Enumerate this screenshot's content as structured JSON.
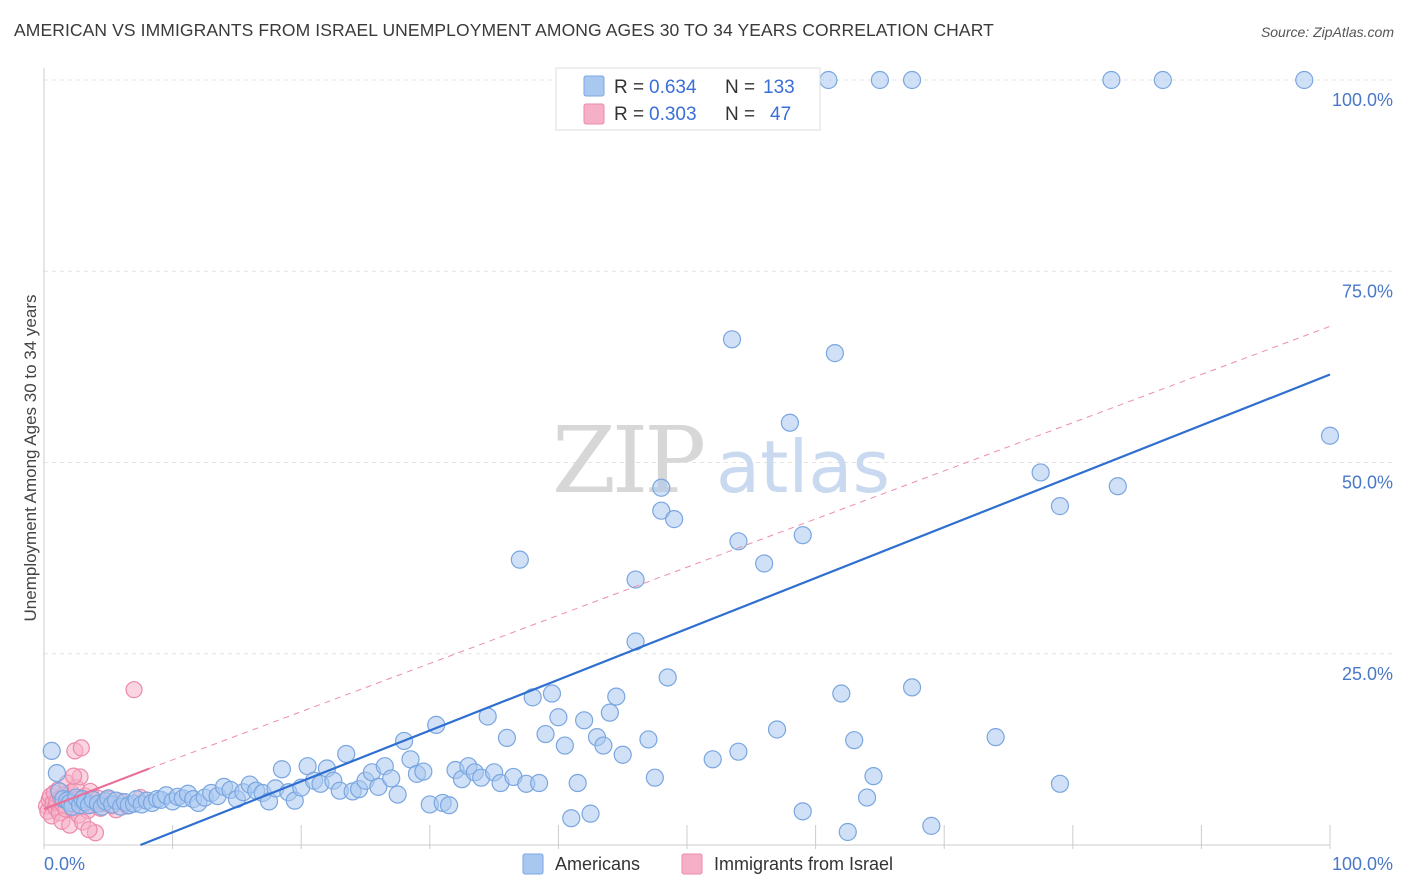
{
  "header": {
    "title": "AMERICAN VS IMMIGRANTS FROM ISRAEL UNEMPLOYMENT AMONG AGES 30 TO 34 YEARS CORRELATION CHART",
    "source": "Source: ZipAtlas.com"
  },
  "watermark": {
    "zip": "ZIP",
    "atlas": "atlas"
  },
  "legend": {
    "r_label": "R =",
    "n_label": "N =",
    "americans_r": "0.634",
    "americans_n": "133",
    "israel_r": "0.303",
    "israel_n": "47"
  },
  "colors": {
    "americans_fill": "#a9c8f0",
    "americans_stroke": "#7aa6e0",
    "americans_line": "#2f6fd0",
    "israel_fill": "#f5b0c8",
    "israel_stroke": "#ec8aaa",
    "israel_line": "#e8709a"
  },
  "chart_data": {
    "type": "scatter",
    "title": "AMERICAN VS IMMIGRANTS FROM ISRAEL UNEMPLOYMENT AMONG AGES 30 TO 34 YEARS CORRELATION CHART",
    "xlabel": "",
    "ylabel": "Unemployment Among Ages 30 to 34 years",
    "xlim": [
      0,
      100
    ],
    "ylim": [
      0,
      100
    ],
    "x_tick_labels": [
      "0.0%",
      "100.0%"
    ],
    "y_ticks": [
      {
        "value": 25,
        "label": "25.0%"
      },
      {
        "value": 50,
        "label": "50.0%"
      },
      {
        "value": 75,
        "label": "75.0%"
      },
      {
        "value": 100,
        "label": "100.0%"
      }
    ],
    "series": [
      {
        "name": "Americans",
        "r": 0.634,
        "n": 133,
        "trend": {
          "x0": 7.5,
          "y0": 0,
          "x1": 100,
          "y1": 61.5,
          "style": "solid"
        },
        "points": [
          [
            0.6,
            12.3
          ],
          [
            1.0,
            9.4
          ],
          [
            1.2,
            7.0
          ],
          [
            1.5,
            6.0
          ],
          [
            1.8,
            5.8
          ],
          [
            2.0,
            5.5
          ],
          [
            2.2,
            5.0
          ],
          [
            2.5,
            6.2
          ],
          [
            2.8,
            5.2
          ],
          [
            3.0,
            6.0
          ],
          [
            3.2,
            5.6
          ],
          [
            3.5,
            5.2
          ],
          [
            3.8,
            5.9
          ],
          [
            4.2,
            5.4
          ],
          [
            4.5,
            5.0
          ],
          [
            4.8,
            5.7
          ],
          [
            5.0,
            6.1
          ],
          [
            5.3,
            5.3
          ],
          [
            5.6,
            5.8
          ],
          [
            6.0,
            5.0
          ],
          [
            6.3,
            5.6
          ],
          [
            6.6,
            5.2
          ],
          [
            7.0,
            5.4
          ],
          [
            7.2,
            6.0
          ],
          [
            7.6,
            5.3
          ],
          [
            8.0,
            5.8
          ],
          [
            8.4,
            5.5
          ],
          [
            8.8,
            6.0
          ],
          [
            9.1,
            5.9
          ],
          [
            9.5,
            6.5
          ],
          [
            10.0,
            5.7
          ],
          [
            10.4,
            6.3
          ],
          [
            10.8,
            6.1
          ],
          [
            11.2,
            6.7
          ],
          [
            11.6,
            6.0
          ],
          [
            12.0,
            5.5
          ],
          [
            12.5,
            6.2
          ],
          [
            13.0,
            6.8
          ],
          [
            13.5,
            6.4
          ],
          [
            14.0,
            7.6
          ],
          [
            14.5,
            7.2
          ],
          [
            15.0,
            6.0
          ],
          [
            15.5,
            6.9
          ],
          [
            16.0,
            7.9
          ],
          [
            16.5,
            7.1
          ],
          [
            17.0,
            6.8
          ],
          [
            17.5,
            5.7
          ],
          [
            18.0,
            7.4
          ],
          [
            18.5,
            9.9
          ],
          [
            19.0,
            6.9
          ],
          [
            19.5,
            5.8
          ],
          [
            20.0,
            7.5
          ],
          [
            20.5,
            10.3
          ],
          [
            21.0,
            8.4
          ],
          [
            21.5,
            8.0
          ],
          [
            22.0,
            10.0
          ],
          [
            22.5,
            8.4
          ],
          [
            23.0,
            7.1
          ],
          [
            23.5,
            11.9
          ],
          [
            24.0,
            7.0
          ],
          [
            24.5,
            7.3
          ],
          [
            25.0,
            8.4
          ],
          [
            25.5,
            9.5
          ],
          [
            26.0,
            7.6
          ],
          [
            26.5,
            10.3
          ],
          [
            27.0,
            8.7
          ],
          [
            27.5,
            6.6
          ],
          [
            28.0,
            13.6
          ],
          [
            28.5,
            11.2
          ],
          [
            29.0,
            9.3
          ],
          [
            29.5,
            9.6
          ],
          [
            30.0,
            5.3
          ],
          [
            30.5,
            15.7
          ],
          [
            31.0,
            5.5
          ],
          [
            31.5,
            5.2
          ],
          [
            32.0,
            9.8
          ],
          [
            32.5,
            8.6
          ],
          [
            33.0,
            10.3
          ],
          [
            33.5,
            9.5
          ],
          [
            34.0,
            8.8
          ],
          [
            34.5,
            16.8
          ],
          [
            35.0,
            9.5
          ],
          [
            35.5,
            8.1
          ],
          [
            36.0,
            14.0
          ],
          [
            36.5,
            8.9
          ],
          [
            37.0,
            37.3
          ],
          [
            37.5,
            8.0
          ],
          [
            38.0,
            19.3
          ],
          [
            38.5,
            8.1
          ],
          [
            39.0,
            14.5
          ],
          [
            39.5,
            19.8
          ],
          [
            40.0,
            16.7
          ],
          [
            40.5,
            13.0
          ],
          [
            41.0,
            3.5
          ],
          [
            41.5,
            8.1
          ],
          [
            42.0,
            16.3
          ],
          [
            42.5,
            4.1
          ],
          [
            43.0,
            14.1
          ],
          [
            43.5,
            13.0
          ],
          [
            44.0,
            17.3
          ],
          [
            44.5,
            19.4
          ],
          [
            45.0,
            11.8
          ],
          [
            46.0,
            34.7
          ],
          [
            46.0,
            26.6
          ],
          [
            47.0,
            13.8
          ],
          [
            47.5,
            8.8
          ],
          [
            48.0,
            46.7
          ],
          [
            48.0,
            43.7
          ],
          [
            48.5,
            21.9
          ],
          [
            49.0,
            42.6
          ],
          [
            52.0,
            11.2
          ],
          [
            53.5,
            66.1
          ],
          [
            54.0,
            39.7
          ],
          [
            54.0,
            12.2
          ],
          [
            56.0,
            36.8
          ],
          [
            57.0,
            15.1
          ],
          [
            58.0,
            55.2
          ],
          [
            59.0,
            40.5
          ],
          [
            59.0,
            4.4
          ],
          [
            61.0,
            100
          ],
          [
            61.5,
            64.3
          ],
          [
            62.0,
            19.8
          ],
          [
            62.5,
            1.7
          ],
          [
            63.0,
            13.7
          ],
          [
            64.0,
            6.2
          ],
          [
            64.5,
            9.0
          ],
          [
            65.0,
            100
          ],
          [
            67.5,
            100
          ],
          [
            67.5,
            20.6
          ],
          [
            69.0,
            2.5
          ],
          [
            74.0,
            14.1
          ],
          [
            77.5,
            48.7
          ],
          [
            79.0,
            44.3
          ],
          [
            79.0,
            8.0
          ],
          [
            83.0,
            100
          ],
          [
            83.5,
            46.9
          ],
          [
            87.0,
            100
          ],
          [
            98.0,
            100
          ],
          [
            100.0,
            53.5
          ]
        ]
      },
      {
        "name": "Immigrants from Israel",
        "r": 0.303,
        "n": 47,
        "trend_solid": {
          "x0": 0,
          "y0": 4.7,
          "x1": 8.2,
          "y1": 10.0
        },
        "trend_dashed": {
          "x0": 8.2,
          "y0": 10.0,
          "x1": 100,
          "y1": 67.8
        },
        "points": [
          [
            0.2,
            5.1
          ],
          [
            0.3,
            4.4
          ],
          [
            0.4,
            5.9
          ],
          [
            0.5,
            6.4
          ],
          [
            0.6,
            3.8
          ],
          [
            0.7,
            5.5
          ],
          [
            0.8,
            6.8
          ],
          [
            0.9,
            4.9
          ],
          [
            1.0,
            5.6
          ],
          [
            1.1,
            7.2
          ],
          [
            1.2,
            4.2
          ],
          [
            1.3,
            6.1
          ],
          [
            1.4,
            3.1
          ],
          [
            1.5,
            5.3
          ],
          [
            1.6,
            6.6
          ],
          [
            1.7,
            4.7
          ],
          [
            1.8,
            8.1
          ],
          [
            1.9,
            5.9
          ],
          [
            2.0,
            2.6
          ],
          [
            2.1,
            6.9
          ],
          [
            2.2,
            4.8
          ],
          [
            2.3,
            5.3
          ],
          [
            2.4,
            12.3
          ],
          [
            2.5,
            7.5
          ],
          [
            2.6,
            6.0
          ],
          [
            2.7,
            3.9
          ],
          [
            2.8,
            8.9
          ],
          [
            2.9,
            12.7
          ],
          [
            3.0,
            5.6
          ],
          [
            3.2,
            6.4
          ],
          [
            3.4,
            4.5
          ],
          [
            3.6,
            7.0
          ],
          [
            3.8,
            5.2
          ],
          [
            4.0,
            1.6
          ],
          [
            4.2,
            6.1
          ],
          [
            4.4,
            4.8
          ],
          [
            4.7,
            5.4
          ],
          [
            5.0,
            6.0
          ],
          [
            5.3,
            5.1
          ],
          [
            5.6,
            4.6
          ],
          [
            6.0,
            5.7
          ],
          [
            6.5,
            5.1
          ],
          [
            7.0,
            20.3
          ],
          [
            2.3,
            9.0
          ],
          [
            3.0,
            3.0
          ],
          [
            3.5,
            2.0
          ],
          [
            7.5,
            6.2
          ]
        ]
      }
    ]
  }
}
